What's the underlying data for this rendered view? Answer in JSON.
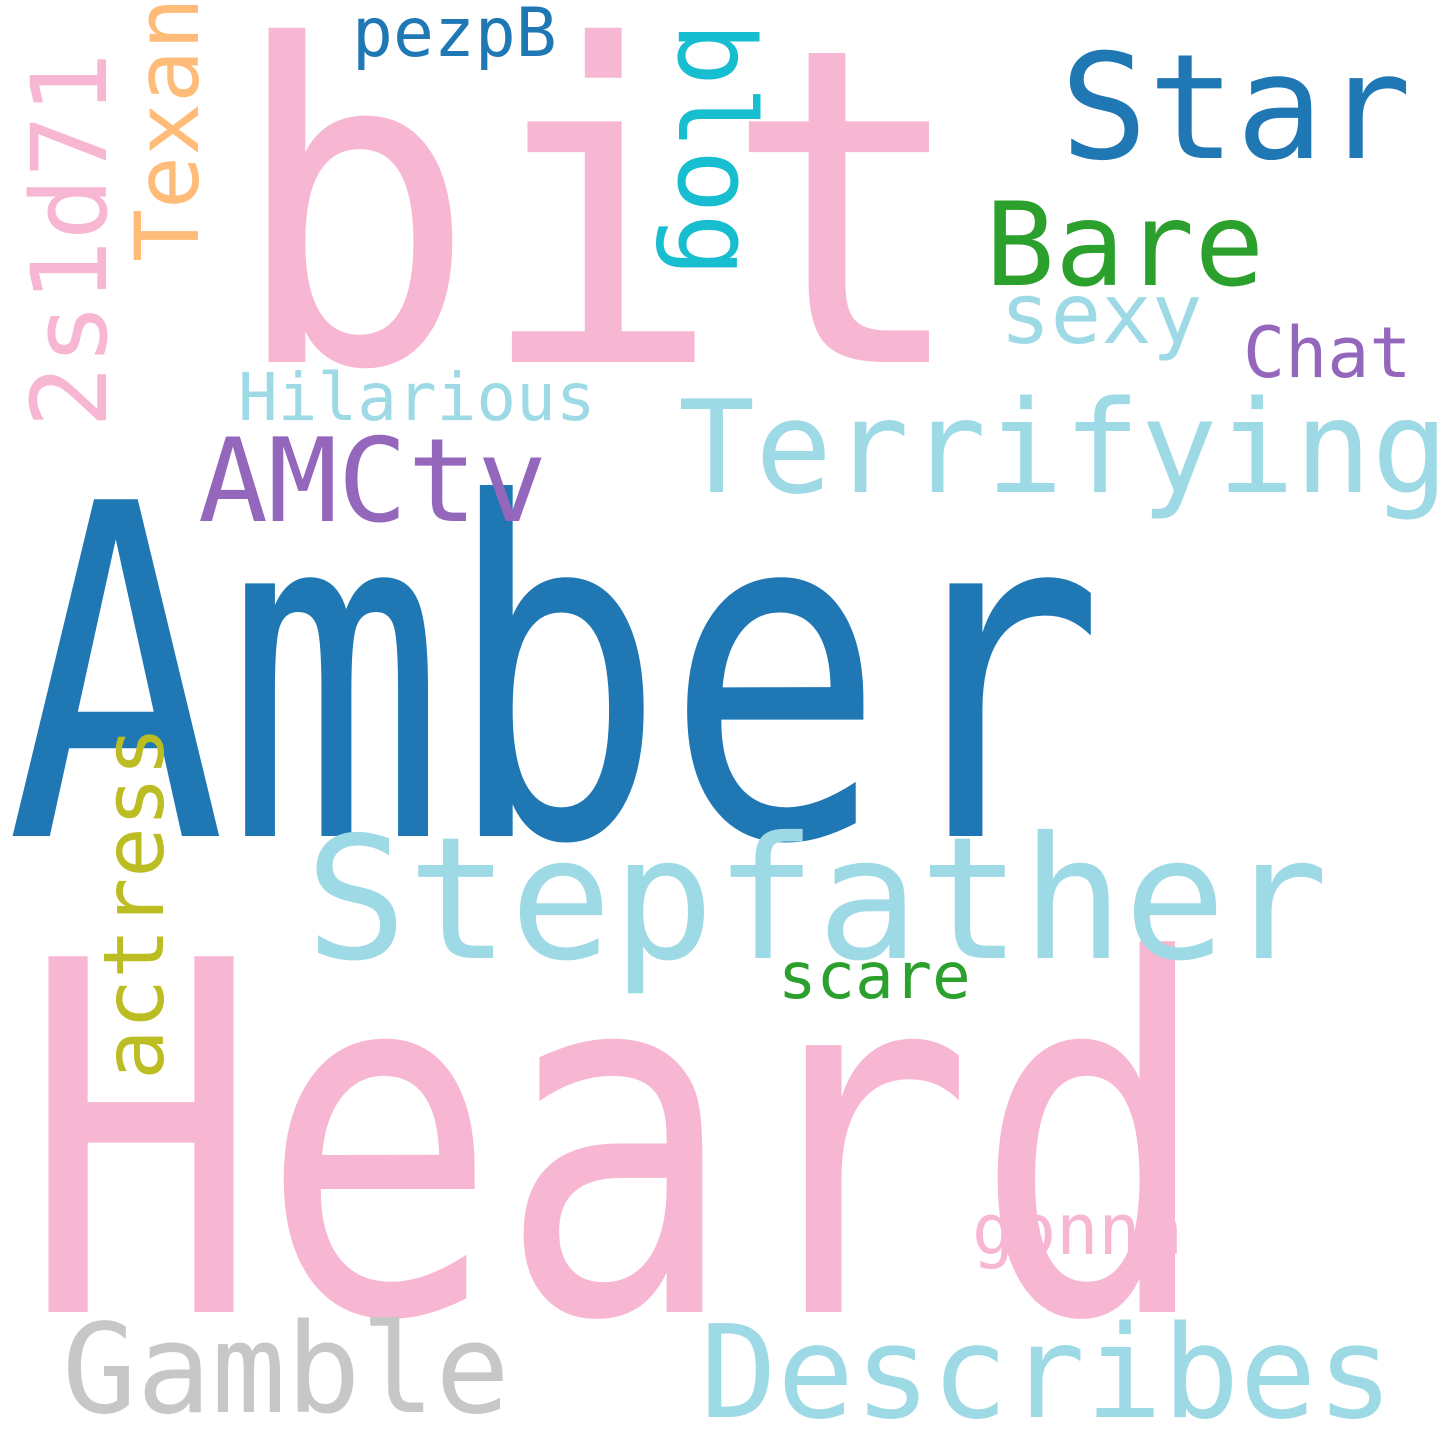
{
  "words": [
    {
      "key": "amber",
      "text": "Amber",
      "color": "#1f77b4"
    },
    {
      "key": "heard",
      "text": "Heard",
      "color": "#f7b6d2"
    },
    {
      "key": "bit",
      "text": "bit",
      "color": "#f7b6d2"
    },
    {
      "key": "stepfather",
      "text": "Stepfather",
      "color": "#9edae5"
    },
    {
      "key": "terrifying",
      "text": "Terrifying",
      "color": "#9edae5"
    },
    {
      "key": "describes",
      "text": "Describes",
      "color": "#9edae5"
    },
    {
      "key": "gamble",
      "text": "Gamble",
      "color": "#c7c7c7"
    },
    {
      "key": "star",
      "text": "Star",
      "color": "#1f77b4"
    },
    {
      "key": "bare",
      "text": "Bare",
      "color": "#2ca02c"
    },
    {
      "key": "amctv",
      "text": "AMCtv",
      "color": "#9467bd"
    },
    {
      "key": "hilarious",
      "text": "Hilarious",
      "color": "#9edae5"
    },
    {
      "key": "sexy",
      "text": "sexy",
      "color": "#9edae5"
    },
    {
      "key": "chat",
      "text": "Chat",
      "color": "#9467bd"
    },
    {
      "key": "pezpb",
      "text": "pezpB",
      "color": "#1f77b4"
    },
    {
      "key": "blog",
      "text": "blog",
      "color": "#17becf"
    },
    {
      "key": "texan",
      "text": "Texan",
      "color": "#ffbb78"
    },
    {
      "key": "code",
      "text": "2s1d71",
      "color": "#f7b6d2"
    },
    {
      "key": "actress",
      "text": "actress",
      "color": "#bcbd22"
    },
    {
      "key": "scare",
      "text": "scare",
      "color": "#2ca02c"
    },
    {
      "key": "gonna",
      "text": "gonna",
      "color": "#f7b6d2"
    }
  ]
}
